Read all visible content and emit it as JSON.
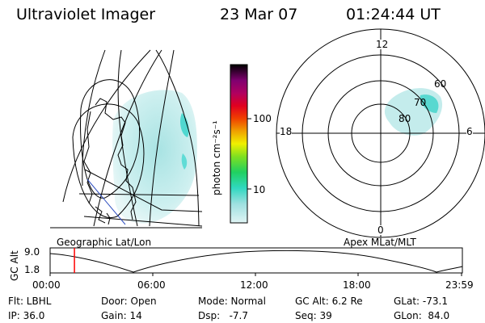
{
  "header": {
    "title": "Ultraviolet Imager",
    "date": "23 Mar 07",
    "time": "01:24:44 UT"
  },
  "colorbar": {
    "unit_label": "photon cm⁻²s⁻¹",
    "tick_100": "100",
    "tick_10": "10"
  },
  "polar_plot": {
    "mlt_labels": {
      "top": "12",
      "left": "18",
      "right": "6",
      "bottom": "0"
    },
    "lat_labels": {
      "lat60": "60",
      "lat70": "70",
      "lat80": "80"
    }
  },
  "map_labels": {
    "geographic": "Geographic Lat/Lon",
    "apex": "Apex MLat/MLT"
  },
  "altitude_plot": {
    "axis_label": "GC Alt",
    "y_top": "9.0",
    "y_bottom": "1.8",
    "x_ticks": [
      "00:00",
      "06:00",
      "12:00",
      "18:00",
      "23:59"
    ],
    "marker_fraction": 0.059
  },
  "info": {
    "flt": "Flt: LBHL",
    "ip": "IP: 36.0",
    "door": "Door: Open",
    "gain": "Gain: 14",
    "mode": "Mode: Normal",
    "dsp": "Dsp:   -7.7",
    "gcalt": "GC Alt: 6.2 Re",
    "seq": "Seq: 39",
    "glat": "GLat: -73.1",
    "glon": "GLon:  84.0"
  },
  "colors": {
    "aurora": "#aee8e8",
    "aurora_bright": "#40d8d0",
    "marker": "#ff0000",
    "coast": "#000000",
    "track": "#3050c0"
  }
}
